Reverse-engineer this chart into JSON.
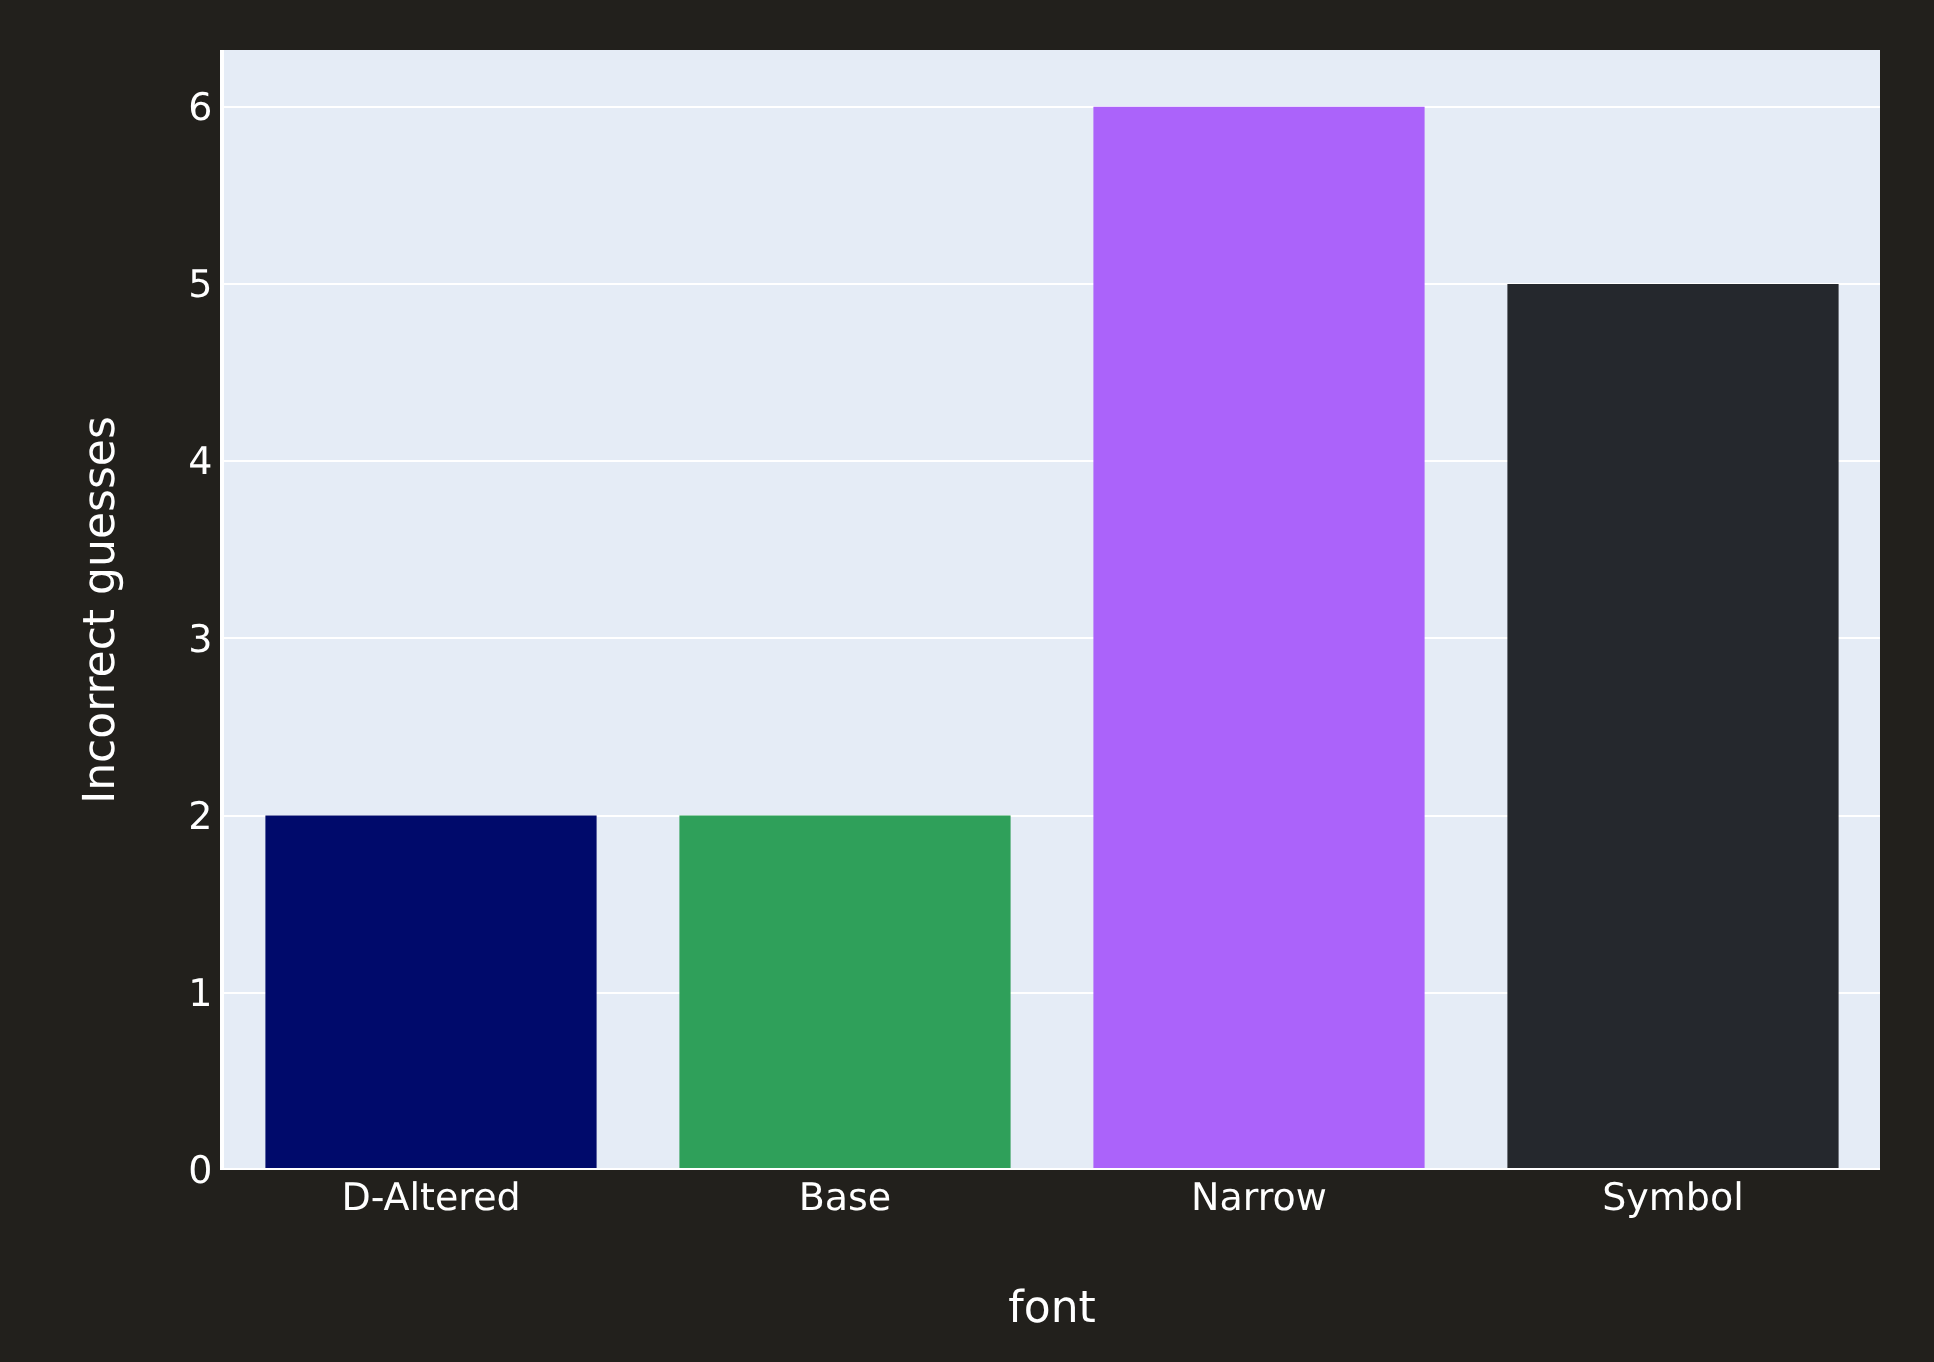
{
  "chart_data": {
    "type": "bar",
    "xlabel": "font",
    "ylabel": "Incorrect guesses",
    "categories": [
      "D-Altered",
      "Base",
      "Narrow",
      "Symbol"
    ],
    "values": [
      2,
      2,
      6,
      5
    ],
    "colors": [
      "#000a6b",
      "#2fa05a",
      "#ab63fa",
      "#25282d"
    ],
    "ylim": [
      0,
      6.32
    ],
    "yticks": [
      0,
      1,
      2,
      3,
      4,
      5,
      6
    ],
    "grid": "y"
  }
}
